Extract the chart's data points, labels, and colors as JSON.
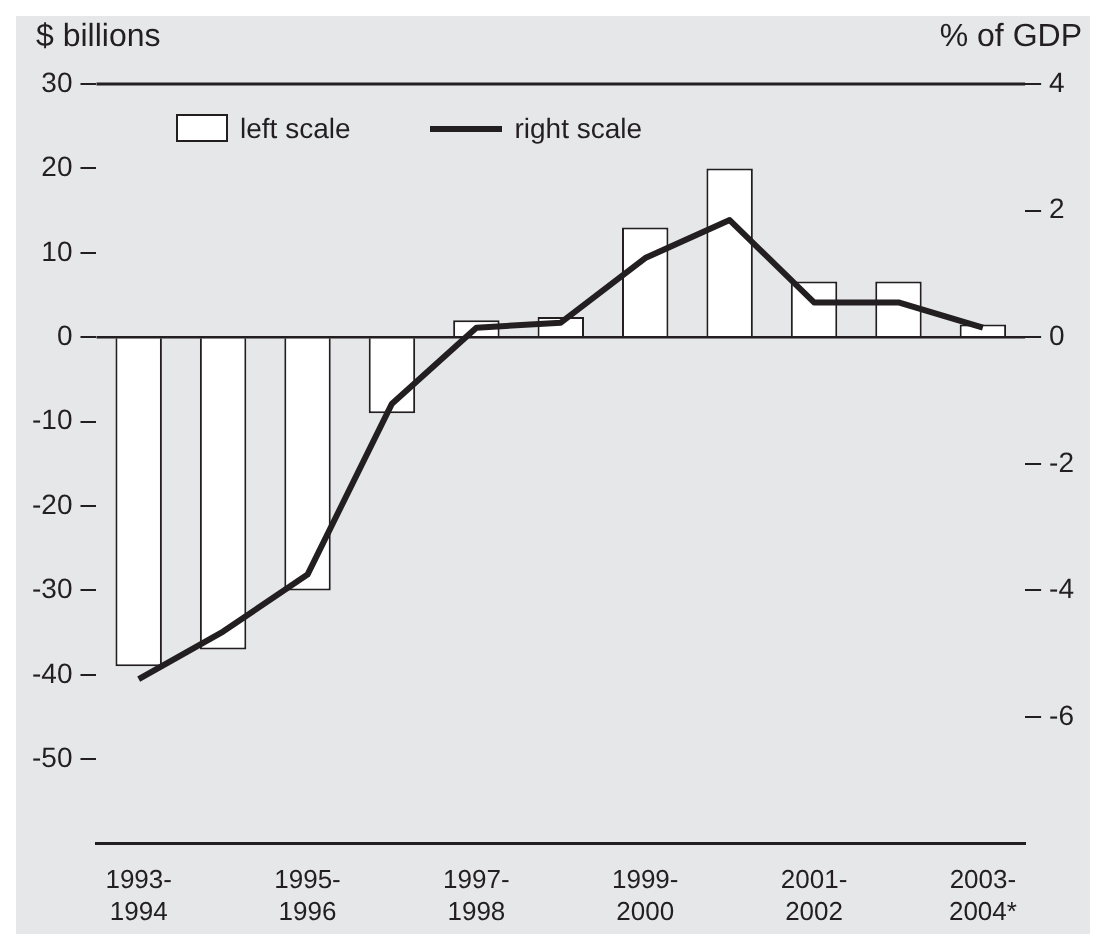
{
  "chart_data": {
    "type": "bar",
    "ylabel": "$ billions",
    "y2label": "% of GDP",
    "categories": [
      "1993-1994",
      null,
      "1995-1996",
      null,
      "1997-1998",
      null,
      "1999-2000",
      null,
      "2001-2002",
      null,
      "2003-2004*"
    ],
    "series": [
      {
        "name": "left scale",
        "color": "#ffffff",
        "values": [
          -39,
          -37,
          -30,
          -9,
          2,
          2.4,
          13,
          20,
          6.6,
          6.6,
          1.5
        ]
      },
      {
        "name": "right scale",
        "type": "line",
        "axis": "y2",
        "color": "#231f20",
        "values": [
          -5.4,
          -4.65,
          -3.75,
          -1.05,
          0.15,
          0.23,
          1.25,
          1.85,
          0.55,
          0.55,
          0.15
        ]
      }
    ],
    "ylim": [
      -60,
      30
    ],
    "yticks": [
      -50,
      -40,
      -30,
      -20,
      -10,
      0,
      10,
      20,
      30
    ],
    "y2lim": [
      -8,
      4
    ],
    "y2ticks": [
      -6,
      -4,
      -2,
      0,
      2,
      4
    ],
    "ref_lines": [
      {
        "axis": "y",
        "value": 0,
        "color": "#231f20"
      }
    ],
    "grid": false,
    "legend": "top left",
    "marker": "none",
    "line_style": "solid"
  }
}
